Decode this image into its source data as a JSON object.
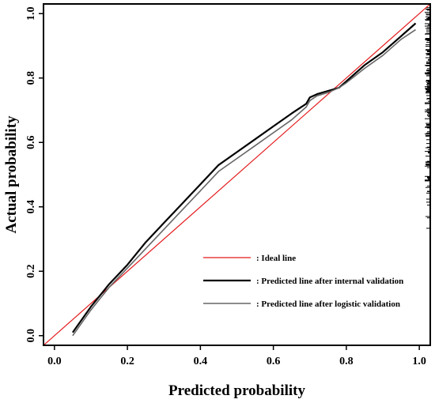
{
  "chart_data": {
    "type": "line",
    "title": "",
    "xlabel": "Predicted probability",
    "ylabel": "Actual probability",
    "xlim": [
      -0.03,
      1.03
    ],
    "ylim": [
      -0.03,
      1.03
    ],
    "xticks": [
      0.0,
      0.2,
      0.4,
      0.6,
      0.8,
      1.0
    ],
    "xtick_labels": [
      "0.0",
      "0.2",
      "0.4",
      "0.6",
      "0.8",
      "1.0"
    ],
    "yticks": [
      0.0,
      0.2,
      0.4,
      0.6,
      0.8,
      1.0
    ],
    "ytick_labels": [
      "0.0",
      "0.2",
      "0.4",
      "0.6",
      "0.8",
      "1.0"
    ],
    "grid": false,
    "legend_position": "bottom-right",
    "rug": "right",
    "series": [
      {
        "name": ": Ideal line",
        "color": "#e41a1c",
        "x": [
          -0.03,
          1.03
        ],
        "y": [
          -0.03,
          1.03
        ]
      },
      {
        "name": ": Predicted line after internal validation",
        "color": "#000000",
        "x": [
          0.05,
          0.1,
          0.15,
          0.2,
          0.25,
          0.3,
          0.35,
          0.4,
          0.45,
          0.5,
          0.55,
          0.6,
          0.65,
          0.69,
          0.7,
          0.72,
          0.75,
          0.78,
          0.8,
          0.85,
          0.9,
          0.95,
          0.99
        ],
        "y": [
          0.01,
          0.09,
          0.16,
          0.22,
          0.29,
          0.35,
          0.41,
          0.47,
          0.53,
          0.57,
          0.61,
          0.65,
          0.69,
          0.72,
          0.74,
          0.75,
          0.76,
          0.77,
          0.79,
          0.84,
          0.88,
          0.93,
          0.97
        ]
      },
      {
        "name": ": Predicted line after logistic validation",
        "color": "#666666",
        "x": [
          0.05,
          0.1,
          0.15,
          0.2,
          0.25,
          0.3,
          0.35,
          0.4,
          0.45,
          0.5,
          0.55,
          0.6,
          0.65,
          0.69,
          0.7,
          0.72,
          0.75,
          0.78,
          0.8,
          0.85,
          0.9,
          0.95,
          0.99
        ],
        "y": [
          0.0,
          0.08,
          0.15,
          0.21,
          0.27,
          0.33,
          0.39,
          0.45,
          0.51,
          0.55,
          0.59,
          0.63,
          0.67,
          0.71,
          0.73,
          0.745,
          0.755,
          0.77,
          0.785,
          0.83,
          0.87,
          0.92,
          0.95
        ]
      }
    ]
  }
}
